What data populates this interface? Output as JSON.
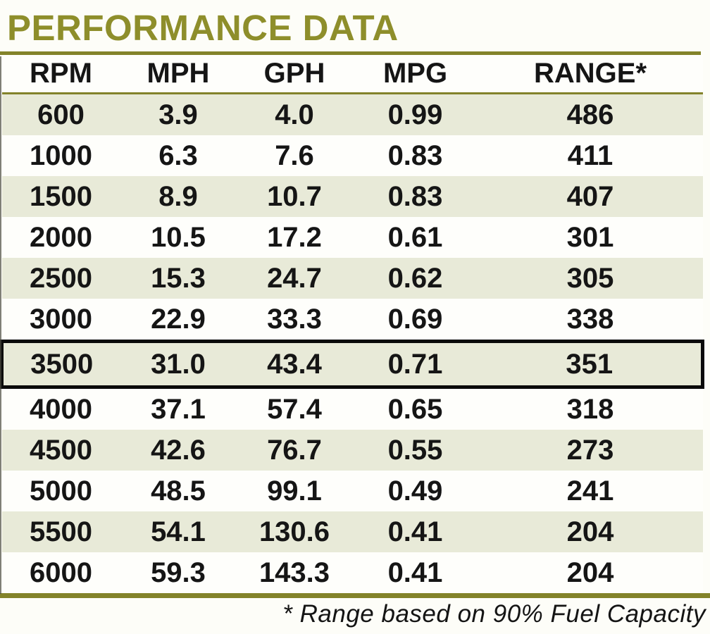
{
  "page": {
    "title": "PERFORMANCE DATA",
    "footnote": "* Range based on 90% Fuel Capacity"
  },
  "table": {
    "headers": [
      "RPM",
      "MPH",
      "GPH",
      "MPG",
      "RANGE*"
    ],
    "rows": [
      [
        "600",
        "3.9",
        "4.0",
        "0.99",
        "486"
      ],
      [
        "1000",
        "6.3",
        "7.6",
        "0.83",
        "411"
      ],
      [
        "1500",
        "8.9",
        "10.7",
        "0.83",
        "407"
      ],
      [
        "2000",
        "10.5",
        "17.2",
        "0.61",
        "301"
      ],
      [
        "2500",
        "15.3",
        "24.7",
        "0.62",
        "305"
      ],
      [
        "3000",
        "22.9",
        "33.3",
        "0.69",
        "338"
      ],
      [
        "3500",
        "31.0",
        "43.4",
        "0.71",
        "351"
      ],
      [
        "4000",
        "37.1",
        "57.4",
        "0.65",
        "318"
      ],
      [
        "4500",
        "42.6",
        "76.7",
        "0.55",
        "273"
      ],
      [
        "5000",
        "48.5",
        "99.1",
        "0.49",
        "241"
      ],
      [
        "5500",
        "54.1",
        "130.6",
        "0.41",
        "204"
      ],
      [
        "6000",
        "59.3",
        "143.3",
        "0.41",
        "204"
      ]
    ],
    "highlighted_row_index": 6
  },
  "colors": {
    "title_olive": "#8e8e2b",
    "rule_olive": "#83832a",
    "row_shade": "#e8ead8",
    "highlight_border": "#0a0a0a"
  }
}
